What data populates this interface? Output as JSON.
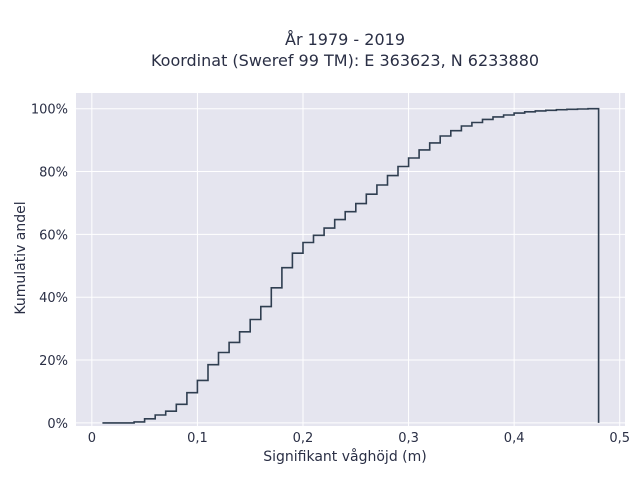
{
  "chart_data": {
    "type": "line",
    "line_shape": "step",
    "title_line1": "År 1979 - 2019",
    "title_line2": "Koordinat (Sweref 99 TM): E 363623, N 6233880",
    "xlabel": "Signifikant våghöjd (m)",
    "ylabel": "Kumulativ andel",
    "xlim": [
      -0.015,
      0.505
    ],
    "ylim": [
      -0.01,
      1.05
    ],
    "x_ticks": [
      {
        "value": 0,
        "label": "0"
      },
      {
        "value": 0.1,
        "label": "0,1"
      },
      {
        "value": 0.2,
        "label": "0,2"
      },
      {
        "value": 0.3,
        "label": "0,3"
      },
      {
        "value": 0.4,
        "label": "0,4"
      },
      {
        "value": 0.5,
        "label": "0,5"
      }
    ],
    "y_ticks": [
      {
        "value": 0,
        "label": "0%"
      },
      {
        "value": 0.2,
        "label": "20%"
      },
      {
        "value": 0.4,
        "label": "40%"
      },
      {
        "value": 0.6,
        "label": "60%"
      },
      {
        "value": 0.8,
        "label": "80%"
      },
      {
        "value": 1.0,
        "label": "100%"
      }
    ],
    "grid": true,
    "colors": {
      "background": "#e5e5ef",
      "grid": "#ffffff",
      "line": "#2f3e50",
      "text": "#2a2f45"
    },
    "series": [
      {
        "x": [
          0.01,
          0.02,
          0.03,
          0.04,
          0.05,
          0.06,
          0.07,
          0.08,
          0.09,
          0.1,
          0.11,
          0.12,
          0.13,
          0.14,
          0.15,
          0.16,
          0.17,
          0.18,
          0.19,
          0.2,
          0.21,
          0.22,
          0.23,
          0.24,
          0.25,
          0.26,
          0.27,
          0.28,
          0.29,
          0.3,
          0.31,
          0.32,
          0.33,
          0.34,
          0.35,
          0.36,
          0.37,
          0.38,
          0.39,
          0.4,
          0.41,
          0.42,
          0.43,
          0.44,
          0.45,
          0.46,
          0.47,
          0.48
        ],
        "y": [
          0.0,
          0.0,
          0.0,
          0.003,
          0.013,
          0.025,
          0.037,
          0.059,
          0.096,
          0.135,
          0.185,
          0.224,
          0.256,
          0.29,
          0.329,
          0.37,
          0.43,
          0.494,
          0.54,
          0.574,
          0.597,
          0.62,
          0.647,
          0.672,
          0.698,
          0.728,
          0.757,
          0.787,
          0.816,
          0.843,
          0.869,
          0.891,
          0.913,
          0.93,
          0.945,
          0.956,
          0.966,
          0.974,
          0.98,
          0.986,
          0.99,
          0.993,
          0.995,
          0.997,
          0.998,
          0.999,
          1.0,
          1.0
        ],
        "drop_to": 0
      }
    ]
  }
}
